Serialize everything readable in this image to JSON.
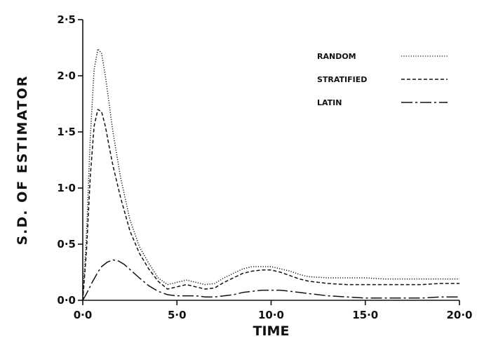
{
  "chart_data": {
    "type": "line",
    "title": "",
    "xlabel": "TIME",
    "ylabel": "S.D. OF ESTIMATOR",
    "xlim": [
      0,
      20
    ],
    "ylim": [
      0,
      2.5
    ],
    "xticks": [
      0,
      5,
      10,
      15,
      20
    ],
    "yticks": [
      0,
      0.5,
      1.0,
      1.5,
      2.0,
      2.5
    ],
    "xtick_labels": [
      "0·0",
      "5·0",
      "10·0",
      "15·0",
      "20·0"
    ],
    "ytick_labels": [
      "0·0",
      "0·5",
      "1·0",
      "1·5",
      "2·0",
      "2·5"
    ],
    "grid": false,
    "legend_position": "top-right",
    "series": [
      {
        "name": "RANDOM",
        "style": "dotted",
        "x": [
          0,
          0.2,
          0.4,
          0.6,
          0.8,
          1.0,
          1.2,
          1.4,
          1.6,
          2.0,
          2.5,
          3.0,
          3.5,
          4.0,
          4.5,
          5.0,
          5.5,
          6.0,
          6.5,
          7.0,
          7.5,
          8.0,
          8.5,
          9.0,
          9.5,
          10.0,
          10.5,
          11.0,
          11.5,
          12.0,
          13.0,
          14.0,
          15.0,
          16.0,
          17.0,
          18.0,
          19.0,
          20.0
        ],
        "y": [
          0,
          0.6,
          1.45,
          2.05,
          2.24,
          2.2,
          2.0,
          1.75,
          1.5,
          1.1,
          0.72,
          0.48,
          0.33,
          0.2,
          0.14,
          0.16,
          0.18,
          0.16,
          0.14,
          0.15,
          0.2,
          0.24,
          0.28,
          0.3,
          0.3,
          0.3,
          0.28,
          0.26,
          0.23,
          0.21,
          0.2,
          0.2,
          0.2,
          0.19,
          0.19,
          0.19,
          0.19,
          0.19
        ]
      },
      {
        "name": "STRATIFIED",
        "style": "dashed",
        "x": [
          0,
          0.2,
          0.4,
          0.6,
          0.8,
          1.0,
          1.2,
          1.4,
          1.6,
          2.0,
          2.5,
          3.0,
          3.5,
          4.0,
          4.5,
          5.0,
          5.5,
          6.0,
          6.5,
          7.0,
          7.5,
          8.0,
          8.5,
          9.0,
          9.5,
          10.0,
          10.5,
          11.0,
          11.5,
          12.0,
          13.0,
          14.0,
          15.0,
          16.0,
          17.0,
          18.0,
          19.0,
          20.0
        ],
        "y": [
          0,
          0.45,
          1.1,
          1.55,
          1.7,
          1.68,
          1.55,
          1.37,
          1.2,
          0.92,
          0.62,
          0.42,
          0.28,
          0.17,
          0.1,
          0.12,
          0.14,
          0.12,
          0.1,
          0.11,
          0.16,
          0.2,
          0.24,
          0.26,
          0.27,
          0.27,
          0.25,
          0.22,
          0.19,
          0.17,
          0.15,
          0.14,
          0.14,
          0.14,
          0.14,
          0.14,
          0.15,
          0.15
        ]
      },
      {
        "name": "LATIN",
        "style": "dash-dot",
        "x": [
          0,
          0.2,
          0.5,
          0.8,
          1.0,
          1.3,
          1.6,
          1.9,
          2.2,
          2.6,
          3.0,
          3.5,
          4.0,
          4.5,
          5.0,
          5.5,
          6.0,
          6.5,
          7.0,
          7.5,
          8.0,
          8.5,
          9.0,
          9.5,
          10.0,
          10.5,
          11.0,
          11.5,
          12.0,
          13.0,
          14.0,
          15.0,
          16.0,
          17.0,
          18.0,
          19.0,
          20.0
        ],
        "y": [
          0,
          0.06,
          0.16,
          0.25,
          0.3,
          0.34,
          0.36,
          0.35,
          0.32,
          0.26,
          0.2,
          0.13,
          0.08,
          0.05,
          0.04,
          0.04,
          0.04,
          0.03,
          0.03,
          0.04,
          0.05,
          0.07,
          0.08,
          0.09,
          0.09,
          0.09,
          0.08,
          0.07,
          0.06,
          0.04,
          0.03,
          0.02,
          0.02,
          0.02,
          0.02,
          0.03,
          0.03
        ]
      }
    ]
  }
}
